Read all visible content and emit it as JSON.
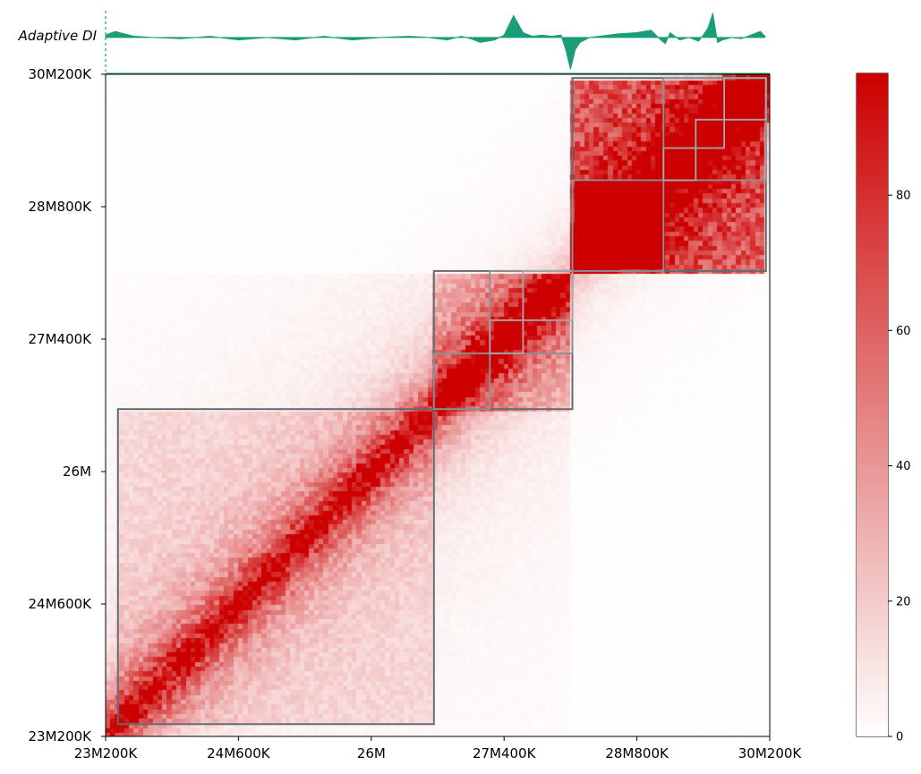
{
  "chart_data": {
    "type": "heatmap",
    "track": {
      "label": "Adaptive DI",
      "color": "#1b9e77",
      "x": [
        23.2,
        23.3,
        23.5,
        23.7,
        24.0,
        24.3,
        24.6,
        24.9,
        25.2,
        25.5,
        25.8,
        26.1,
        26.4,
        26.6,
        26.8,
        26.95,
        27.05,
        27.15,
        27.3,
        27.4,
        27.5,
        27.6,
        27.7,
        27.8,
        27.9,
        28.0,
        28.05,
        28.1,
        28.15,
        28.2,
        28.3,
        28.4,
        28.6,
        28.8,
        28.95,
        29.05,
        29.1,
        29.15,
        29.25,
        29.35,
        29.45,
        29.5,
        29.55,
        29.6,
        29.65,
        29.7,
        29.8,
        29.9,
        30.0,
        30.1,
        30.15
      ],
      "y": [
        0.1,
        0.25,
        0.05,
        0.0,
        -0.05,
        0.05,
        -0.1,
        0.0,
        -0.1,
        0.05,
        -0.1,
        0.0,
        0.05,
        0.0,
        -0.1,
        0.05,
        -0.05,
        -0.2,
        -0.1,
        0.1,
        0.9,
        0.2,
        0.05,
        0.1,
        0.05,
        0.1,
        -0.5,
        -1.3,
        -0.5,
        -0.2,
        0.0,
        0.05,
        0.15,
        0.2,
        0.3,
        -0.1,
        -0.25,
        0.2,
        -0.1,
        0.0,
        -0.15,
        0.1,
        0.4,
        1.0,
        -0.2,
        -0.1,
        0.0,
        -0.05,
        0.1,
        0.25,
        0.05
      ],
      "ylim": [
        -1.4,
        1.1
      ]
    },
    "x_range": [
      23.2,
      30.2
    ],
    "y_range": [
      23.2,
      30.2
    ],
    "x_ticks": [
      "23M200K",
      "24M600K",
      "26M",
      "27M400K",
      "28M800K",
      "30M200K"
    ],
    "y_ticks": [
      "23M200K",
      "24M600K",
      "26M",
      "27M400K",
      "28M800K",
      "30M200K"
    ],
    "x_tick_values": [
      23.2,
      24.6,
      26.0,
      27.4,
      28.8,
      30.2
    ],
    "y_tick_values": [
      23.2,
      24.6,
      26.0,
      27.4,
      28.8,
      30.2
    ],
    "colorbar": {
      "min": 0,
      "max": 98,
      "ticks": [
        "0",
        "20",
        "40",
        "60",
        "80"
      ],
      "tick_values": [
        0,
        20,
        40,
        60,
        80
      ],
      "low_color": "#ffffff",
      "high_color": "#cc0000"
    },
    "domains": [
      {
        "start": 23.33,
        "end": 26.66,
        "level": 1
      },
      {
        "start": 26.66,
        "end": 28.12,
        "level": 1
      },
      {
        "start": 28.12,
        "end": 30.16,
        "level": 1
      },
      {
        "start": 26.66,
        "end": 27.25,
        "level": 2
      },
      {
        "start": 27.25,
        "end": 28.12,
        "level": 2
      },
      {
        "start": 27.6,
        "end": 28.12,
        "level": 3
      },
      {
        "start": 27.25,
        "end": 27.6,
        "level": 3
      },
      {
        "start": 28.12,
        "end": 29.08,
        "level": 2
      },
      {
        "start": 29.08,
        "end": 30.16,
        "level": 2
      },
      {
        "start": 29.08,
        "end": 29.42,
        "level": 3
      },
      {
        "start": 29.42,
        "end": 29.72,
        "level": 3
      },
      {
        "start": 29.72,
        "end": 30.16,
        "level": 3
      }
    ],
    "grid": false,
    "legend": "none"
  }
}
